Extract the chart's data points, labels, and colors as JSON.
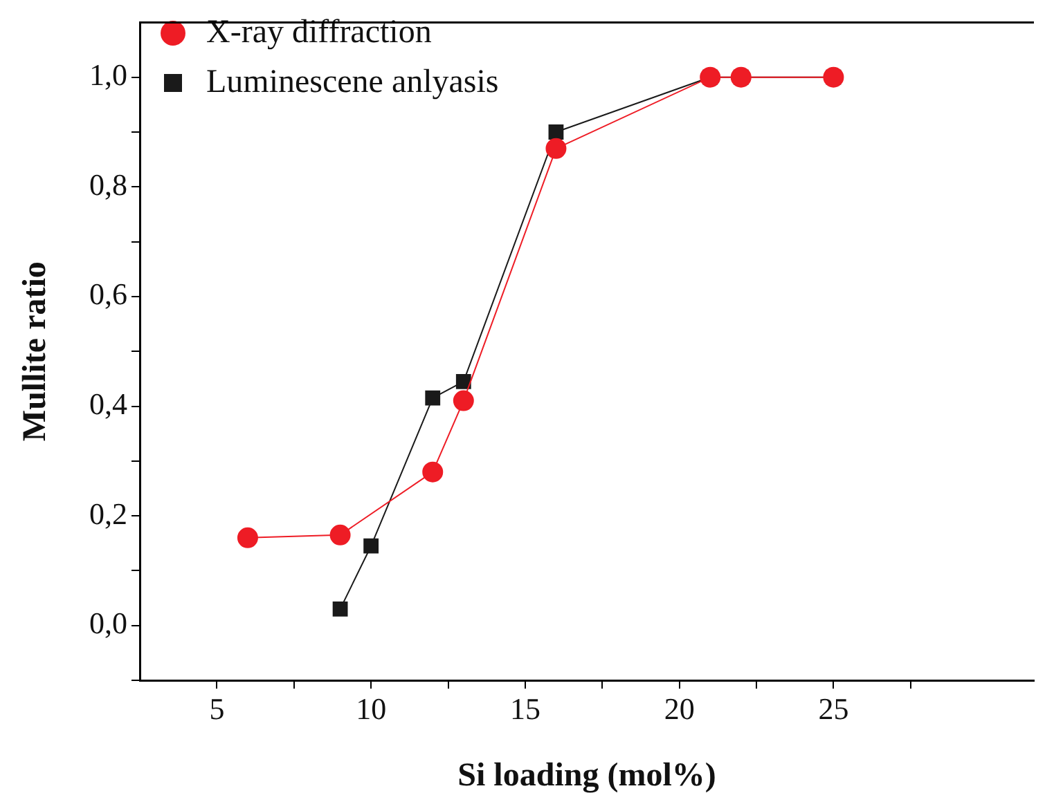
{
  "chart_data": {
    "type": "line",
    "xlabel": "Si loading (mol%)",
    "ylabel": "Mullite ratio",
    "xlim": [
      2.5,
      31.5
    ],
    "xticks": [
      5,
      {
        "value": 7.5,
        "label": null
      },
      10,
      {
        "value": 12.5,
        "label": null
      },
      15,
      {
        "value": 17.5,
        "label": null
      },
      20,
      {
        "value": 22.5,
        "label": null
      },
      25,
      {
        "value": 27.5,
        "label": null
      }
    ],
    "ylim": [
      -0.1,
      1.1
    ],
    "yticks": [
      {
        "value": -0.1,
        "label": null
      },
      {
        "value": 0,
        "label": "0,0"
      },
      {
        "value": 0.1,
        "label": null
      },
      {
        "value": 0.2,
        "label": "0,2"
      },
      {
        "value": 0.3,
        "label": null
      },
      {
        "value": 0.4,
        "label": "0,4"
      },
      {
        "value": 0.5,
        "label": null
      },
      {
        "value": 0.6,
        "label": "0,6"
      },
      {
        "value": 0.7,
        "label": null
      },
      {
        "value": 0.8,
        "label": "0,8"
      },
      {
        "value": 0.9,
        "label": null
      },
      {
        "value": 1.0,
        "label": "1,0"
      }
    ],
    "series": [
      {
        "name": "Luminescene anlyasis",
        "color": "#1a1a1a",
        "marker": "square",
        "x": [
          9,
          10,
          12,
          13,
          16,
          21,
          22,
          25
        ],
        "values": [
          0.03,
          0.145,
          0.415,
          0.445,
          0.9,
          1,
          1,
          1
        ]
      },
      {
        "name": "X-ray diffraction",
        "color": "#ee1c25",
        "marker": "circle",
        "x": [
          6,
          9,
          12,
          13,
          16,
          21,
          22,
          25
        ],
        "values": [
          0.16,
          0.165,
          0.28,
          0.41,
          0.87,
          1,
          1,
          1
        ]
      }
    ],
    "grid": false,
    "legend": "top left",
    "line_style": "solid"
  }
}
